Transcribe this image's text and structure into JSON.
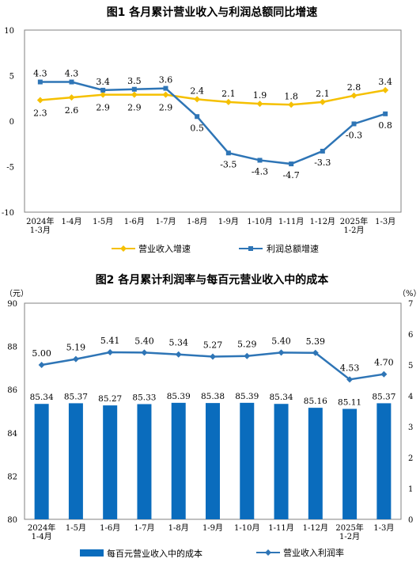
{
  "chart_data": [
    {
      "type": "line",
      "title": "图1  各月累计营业收入与利润总额同比增速",
      "categories": [
        [
          "2024年",
          "1-3月"
        ],
        [
          "1-4月"
        ],
        [
          "1-5月"
        ],
        [
          "1-6月"
        ],
        [
          "1-7月"
        ],
        [
          "1-8月"
        ],
        [
          "1-9月"
        ],
        [
          "1-10月"
        ],
        [
          "1-11月"
        ],
        [
          "1-12月"
        ],
        [
          "2025年",
          "1-2月"
        ],
        [
          "1-3月"
        ]
      ],
      "ylim": [
        -10,
        10
      ],
      "yticks": [
        "10",
        "5",
        "0",
        "-5",
        "-10"
      ],
      "grid": false,
      "legend_position": "bottom",
      "series": [
        {
          "name": "营业收入增速",
          "color": "#f5c000",
          "values": [
            2.3,
            2.6,
            2.9,
            2.9,
            2.9,
            2.4,
            2.1,
            1.9,
            1.8,
            2.1,
            2.8,
            3.4
          ],
          "labels": [
            "2.3",
            "2.6",
            "2.9",
            "2.9",
            "2.9",
            "2.4",
            "2.1",
            "1.9",
            "1.8",
            "2.1",
            "2.8",
            "3.4"
          ]
        },
        {
          "name": "利润总额增速",
          "color": "#2e75b6",
          "values": [
            4.3,
            4.3,
            3.4,
            3.5,
            3.6,
            0.5,
            -3.5,
            -4.3,
            -4.7,
            -3.3,
            -0.3,
            0.8
          ],
          "labels": [
            "4.3",
            "4.3",
            "3.4",
            "3.5",
            "3.6",
            "0.5",
            "-3.5",
            "-4.3",
            "-4.7",
            "-3.3",
            "-0.3",
            "0.8"
          ]
        }
      ]
    },
    {
      "type": "bar+line",
      "title": "图2  各月累计利润率与每百元营业收入中的成本",
      "categories": [
        [
          "2024年",
          "1-4月"
        ],
        [
          "1-5月"
        ],
        [
          "1-6月"
        ],
        [
          "1-7月"
        ],
        [
          "1-8月"
        ],
        [
          "1-9月"
        ],
        [
          "1-10月"
        ],
        [
          "1-11月"
        ],
        [
          "1-12月"
        ],
        [
          "2025年",
          "1-2月"
        ],
        [
          "1-3月"
        ]
      ],
      "left_unit": "（元）",
      "right_unit": "（%）",
      "ylim_left": [
        80,
        90
      ],
      "yticks_left": [
        "90",
        "88",
        "86",
        "84",
        "82",
        "80"
      ],
      "ylim_right": [
        0,
        7
      ],
      "yticks_right": [
        "7",
        "6",
        "5",
        "4",
        "3",
        "2",
        "1",
        "0"
      ],
      "grid": false,
      "legend_position": "bottom",
      "series": [
        {
          "name": "每百元营业收入中的成本",
          "type": "bar",
          "axis": "left",
          "color": "#0a6cbd",
          "values": [
            85.34,
            85.37,
            85.27,
            85.33,
            85.39,
            85.38,
            85.39,
            85.34,
            85.16,
            85.11,
            85.37
          ],
          "labels": [
            "85.34",
            "85.37",
            "85.27",
            "85.33",
            "85.39",
            "85.38",
            "85.39",
            "85.34",
            "85.16",
            "85.11",
            "85.37"
          ]
        },
        {
          "name": "营业收入利润率",
          "type": "line",
          "axis": "right",
          "color": "#2e75b6",
          "values": [
            5.0,
            5.19,
            5.41,
            5.4,
            5.34,
            5.27,
            5.29,
            5.4,
            5.39,
            4.53,
            4.7
          ],
          "labels": [
            "5.00",
            "5.19",
            "5.41",
            "5.40",
            "5.34",
            "5.27",
            "5.29",
            "5.40",
            "5.39",
            "4.53",
            "4.70"
          ]
        }
      ]
    }
  ]
}
